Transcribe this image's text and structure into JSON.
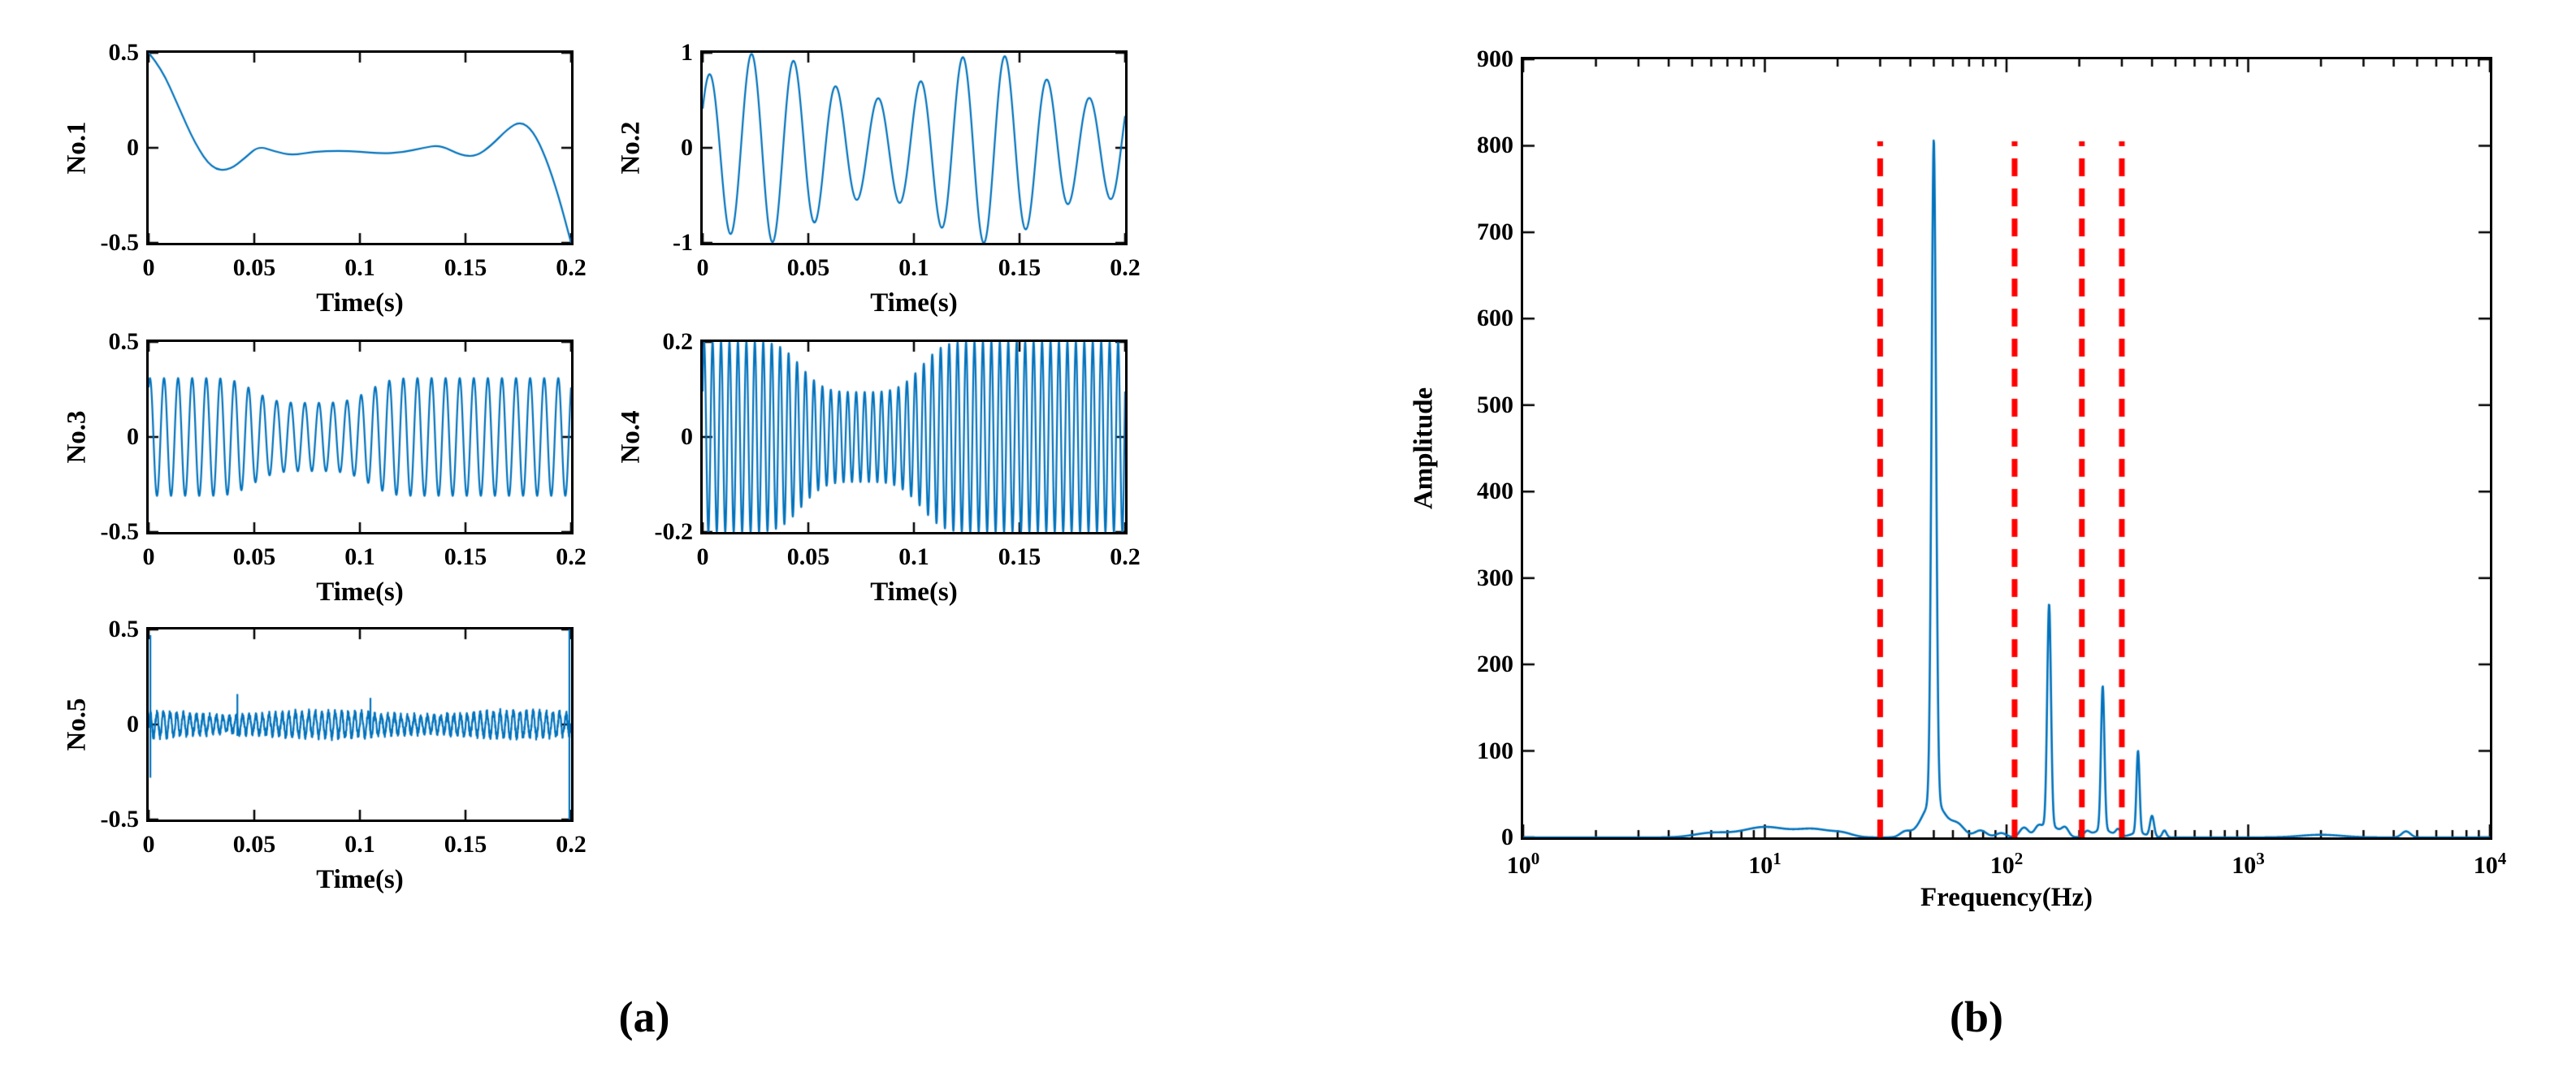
{
  "figure": {
    "background": "#ffffff",
    "line_color": "#0072BD",
    "axis_color": "#000000",
    "panel_labels": {
      "a": "(a)",
      "b": "(b)"
    }
  },
  "chart_data": [
    {
      "id": "no1",
      "type": "line",
      "name": "No.1",
      "xlabel": "Time(s)",
      "xlim": [
        0,
        0.2
      ],
      "xtick_labels": [
        "0",
        "0.05",
        "0.1",
        "0.15",
        "0.2"
      ],
      "ylim": [
        -0.5,
        0.5
      ],
      "ytick_labels": [
        "0.5",
        "0",
        "-0.5"
      ],
      "signal": {
        "kind": "points",
        "points": [
          [
            0,
            0.5
          ],
          [
            0.006,
            0.42
          ],
          [
            0.014,
            0.22
          ],
          [
            0.022,
            0.02
          ],
          [
            0.03,
            -0.11
          ],
          [
            0.038,
            -0.12
          ],
          [
            0.046,
            -0.05
          ],
          [
            0.052,
            0.01
          ],
          [
            0.06,
            -0.02
          ],
          [
            0.068,
            -0.04
          ],
          [
            0.078,
            -0.02
          ],
          [
            0.09,
            -0.015
          ],
          [
            0.1,
            -0.02
          ],
          [
            0.11,
            -0.03
          ],
          [
            0.12,
            -0.025
          ],
          [
            0.13,
            0.0
          ],
          [
            0.138,
            0.015
          ],
          [
            0.148,
            -0.04
          ],
          [
            0.155,
            -0.045
          ],
          [
            0.162,
            0.01
          ],
          [
            0.17,
            0.1
          ],
          [
            0.176,
            0.14
          ],
          [
            0.182,
            0.09
          ],
          [
            0.188,
            -0.05
          ],
          [
            0.194,
            -0.25
          ],
          [
            0.2,
            -0.5
          ]
        ]
      }
    },
    {
      "id": "no2",
      "type": "line",
      "name": "No.2",
      "xlabel": "Time(s)",
      "xlim": [
        0,
        0.2
      ],
      "xtick_labels": [
        "0",
        "0.05",
        "0.1",
        "0.15",
        "0.2"
      ],
      "ylim": [
        -1,
        1
      ],
      "ytick_labels": [
        "1",
        "0",
        "-1"
      ],
      "signal": {
        "kind": "modulated",
        "carrier": {
          "f": 50,
          "p": 0.6
        },
        "env": {
          "kind": "cos",
          "base": 0.76,
          "depth": 0.24,
          "f": 9.5,
          "p": -1.7
        }
      }
    },
    {
      "id": "no3",
      "type": "line",
      "name": "No.3",
      "xlabel": "Time(s)",
      "xlim": [
        0,
        0.2
      ],
      "xtick_labels": [
        "0",
        "0.05",
        "0.1",
        "0.15",
        "0.2"
      ],
      "ylim": [
        -0.5,
        0.5
      ],
      "ytick_labels": [
        "0.5",
        "0",
        "-0.5"
      ],
      "signal": {
        "kind": "modulated",
        "carrier": {
          "f": 150,
          "p": 1.0
        },
        "env": {
          "kind": "notch",
          "base": 0.31,
          "depth": 0.13,
          "center": 0.077,
          "width": 0.03,
          "power": 4
        }
      }
    },
    {
      "id": "no4",
      "type": "line",
      "name": "No.4",
      "xlabel": "Time(s)",
      "xlim": [
        0,
        0.2
      ],
      "xtick_labels": [
        "0",
        "0.05",
        "0.1",
        "0.15",
        "0.2"
      ],
      "ylim": [
        -0.2,
        0.2
      ],
      "ytick_labels": [
        "0.2",
        "0",
        "-0.2"
      ],
      "signal": {
        "kind": "modulated",
        "carrier": {
          "f": 250,
          "p": 0.5
        },
        "env": {
          "kind": "notch",
          "base": 0.2,
          "depth": 0.105,
          "center": 0.075,
          "width": 0.031,
          "power": 4
        }
      }
    },
    {
      "id": "no5",
      "type": "line",
      "name": "No.5",
      "xlabel": "Time(s)",
      "xlim": [
        0,
        0.2
      ],
      "xtick_labels": [
        "0",
        "0.05",
        "0.1",
        "0.15",
        "0.2"
      ],
      "ylim": [
        -0.5,
        0.5
      ],
      "ytick_labels": [
        "0.5",
        "0",
        "-0.5"
      ],
      "signal": {
        "kind": "modulated",
        "carrier": {
          "f": 320,
          "p": 0
        },
        "env": {
          "kind": "cos",
          "base": 0.055,
          "depth": 0.012,
          "f": 11,
          "p": 0.5
        },
        "noise": 0.018,
        "seed": 7,
        "spikes": [
          {
            "t": 0.0008,
            "from": 0.47,
            "to": -0.28
          },
          {
            "t": 0.042,
            "from": 0.16,
            "to": -0.06
          },
          {
            "t": 0.105,
            "from": 0.14,
            "to": -0.05
          },
          {
            "t": 0.1992,
            "from": 0.5,
            "to": -0.5
          }
        ]
      }
    },
    {
      "id": "spectrum",
      "type": "line",
      "name": "FFT spectrum",
      "xscale": "log",
      "xlabel": "Frequency(Hz)",
      "ylabel": "Amplitude",
      "xlim": [
        1,
        10000
      ],
      "xtick_labels": [
        {
          "base": "10",
          "exp": "0"
        },
        {
          "base": "10",
          "exp": "1"
        },
        {
          "base": "10",
          "exp": "2"
        },
        {
          "base": "10",
          "exp": "3"
        },
        {
          "base": "10",
          "exp": "4"
        }
      ],
      "ylim": [
        0,
        900
      ],
      "ytick_labels": [
        "900",
        "800",
        "700",
        "600",
        "500",
        "400",
        "300",
        "200",
        "100",
        "0"
      ],
      "peaks": [
        {
          "f": 50,
          "a": 765,
          "w": 0.013
        },
        {
          "f": 150,
          "a": 256,
          "w": 0.011
        },
        {
          "f": 250,
          "a": 166,
          "w": 0.01
        },
        {
          "f": 350,
          "a": 95,
          "w": 0.009
        }
      ],
      "bumps": [
        {
          "f": 6,
          "a": 5,
          "w": 0.1
        },
        {
          "f": 10,
          "a": 12,
          "w": 0.13
        },
        {
          "f": 16,
          "a": 9,
          "w": 0.1
        },
        {
          "f": 21,
          "a": 4,
          "w": 0.06
        },
        {
          "f": 38,
          "a": 6,
          "w": 0.03
        },
        {
          "f": 63,
          "a": 13,
          "w": 0.04
        },
        {
          "f": 78,
          "a": 8,
          "w": 0.035
        },
        {
          "f": 95,
          "a": 5,
          "w": 0.03
        },
        {
          "f": 118,
          "a": 11,
          "w": 0.025
        },
        {
          "f": 135,
          "a": 7,
          "w": 0.02
        },
        {
          "f": 175,
          "a": 9,
          "w": 0.02
        },
        {
          "f": 215,
          "a": 6,
          "w": 0.018
        },
        {
          "f": 290,
          "a": 8,
          "w": 0.015
        },
        {
          "f": 400,
          "a": 24,
          "w": 0.012
        },
        {
          "f": 450,
          "a": 8,
          "w": 0.012
        },
        {
          "f": 2000,
          "a": 3,
          "w": 0.12
        },
        {
          "f": 4500,
          "a": 7,
          "w": 0.025
        }
      ],
      "band_lines": {
        "frequencies": [
          30,
          108,
          205,
          300
        ],
        "top": 805,
        "color": "#ff0000",
        "dash": [
          22,
          15
        ],
        "width": 7
      }
    }
  ]
}
